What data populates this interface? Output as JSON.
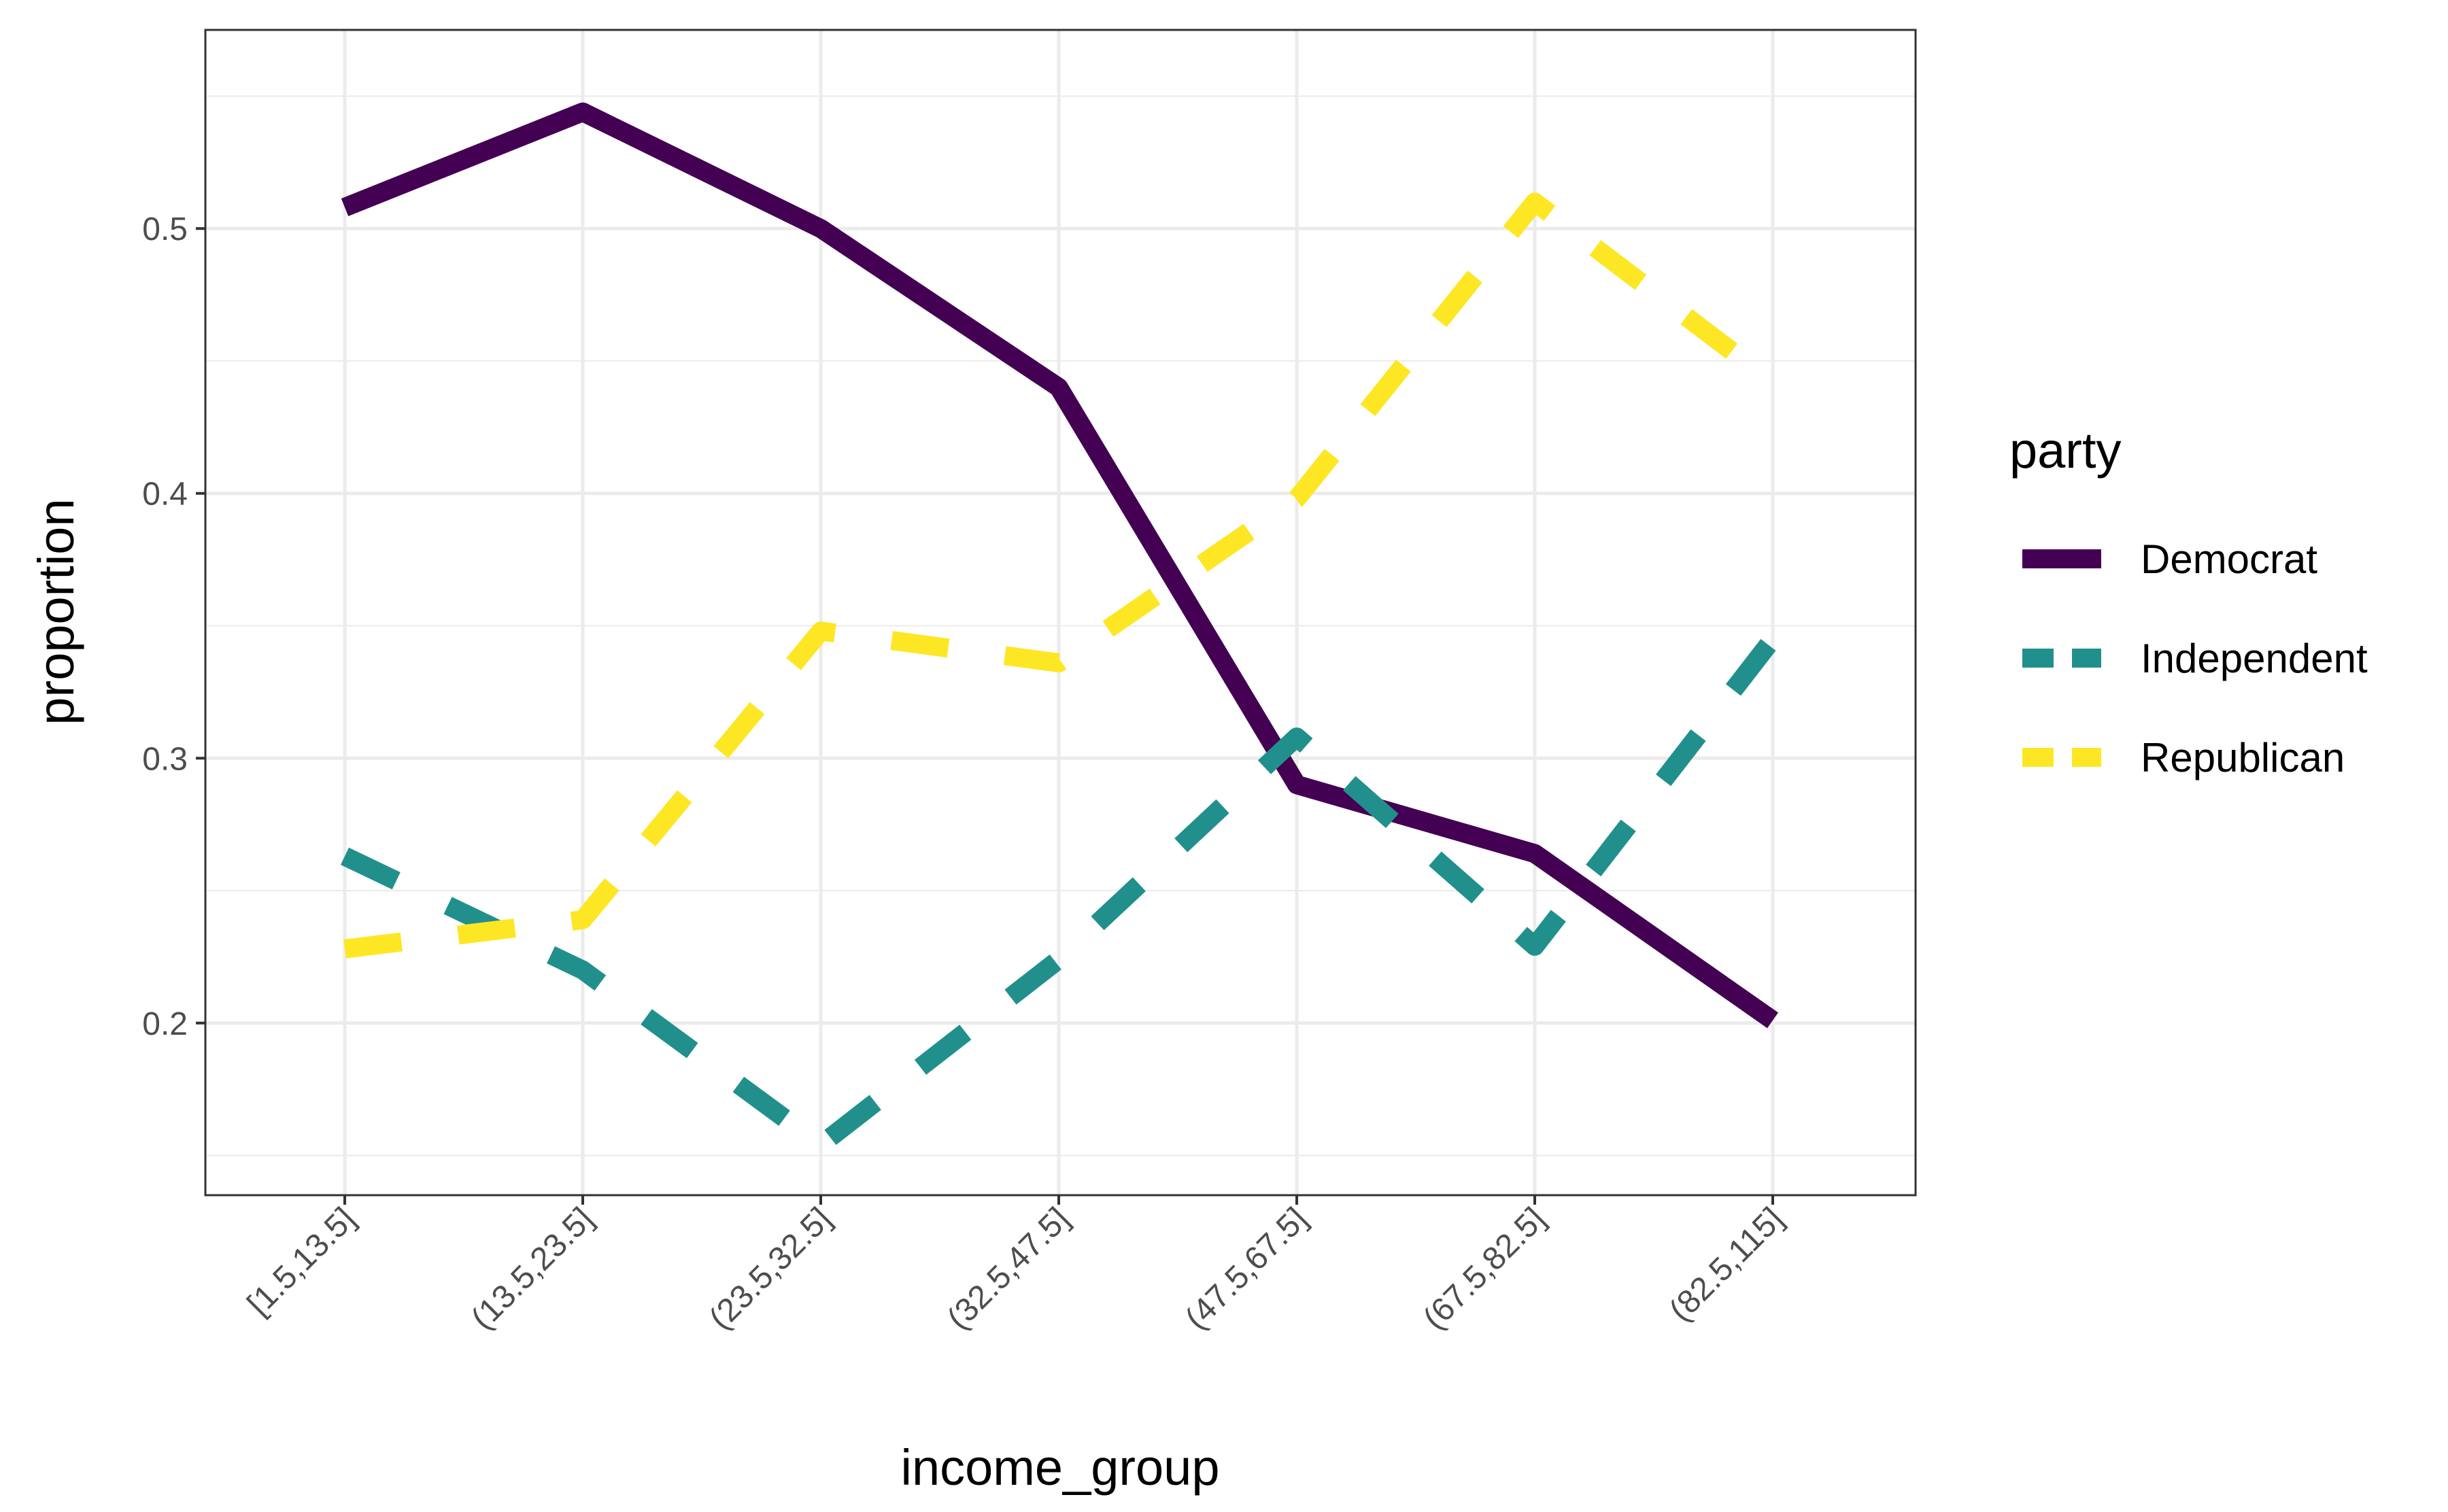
{
  "chart_data": {
    "type": "line",
    "title": "",
    "xlabel": "income_group",
    "ylabel": "proportion",
    "categories": [
      "[1.5,13.5]",
      "(13.5,23.5]",
      "(23.5,32.5]",
      "(32.5,47.5]",
      "(47.5,67.5]",
      "(67.5,82.5]",
      "(82.5,115]"
    ],
    "y_ticks": [
      "0.2",
      "0.3",
      "0.4",
      "0.5"
    ],
    "ylim": [
      0.135,
      0.575
    ],
    "grid": true,
    "legend": {
      "title": "party",
      "position": "right"
    },
    "series": [
      {
        "name": "Democrat",
        "color": "#440154",
        "style": "solid",
        "values": [
          0.508,
          0.544,
          0.5,
          0.44,
          0.29,
          0.264,
          0.201
        ]
      },
      {
        "name": "Independent",
        "color": "#21908C",
        "style": "dashed",
        "values": [
          0.263,
          0.22,
          0.154,
          0.224,
          0.308,
          0.229,
          0.345
        ]
      },
      {
        "name": "Republican",
        "color": "#FDE725",
        "style": "dashed",
        "values": [
          0.228,
          0.239,
          0.348,
          0.336,
          0.398,
          0.51,
          0.442
        ]
      }
    ]
  }
}
